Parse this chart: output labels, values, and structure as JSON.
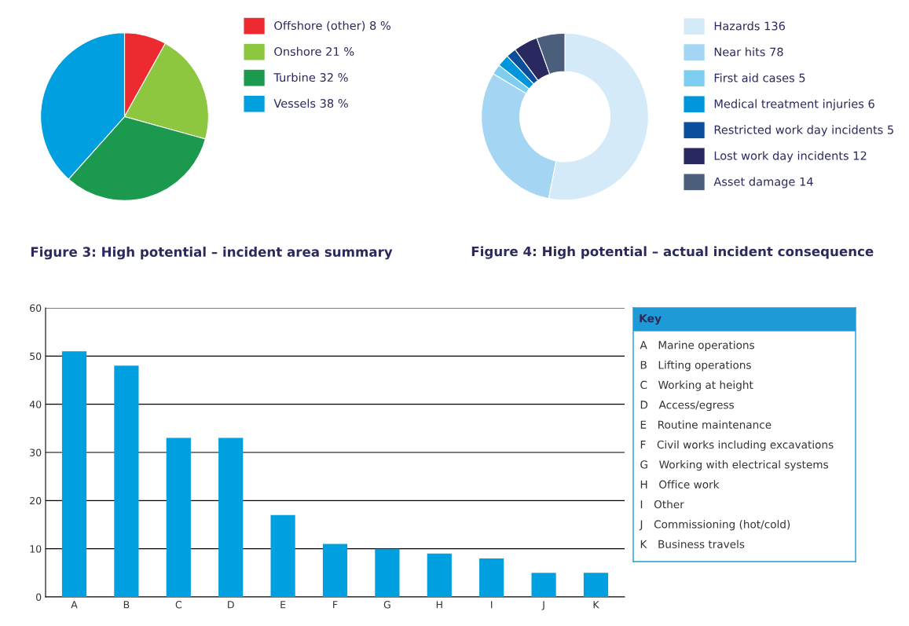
{
  "chart_data": [
    {
      "type": "pie",
      "title": "Figure 3: High potential – incident area summary",
      "legend": "right",
      "categories": [
        "Offshore (other)",
        "Onshore",
        "Turbine",
        "Vessels"
      ],
      "values": [
        8,
        21,
        32,
        38
      ],
      "value_labels": [
        "8 %",
        "21 %",
        "32 %",
        "38 %"
      ],
      "colors": [
        "#ed2a2f",
        "#8dc63f",
        "#1b9a4f",
        "#009fe0"
      ]
    },
    {
      "type": "donut",
      "title": "Figure 4: High potential – actual incident consequence",
      "legend": "right",
      "categories": [
        "Hazards",
        "Near hits",
        "First aid cases",
        "Medical treatment injuries",
        "Restricted work day incidents",
        "Lost work day incidents",
        "Asset damage"
      ],
      "values": [
        136,
        78,
        5,
        6,
        5,
        12,
        14
      ],
      "value_labels": [
        "136",
        "78",
        "5",
        "6",
        "5",
        "12",
        "14"
      ],
      "colors": [
        "#d5eaf8",
        "#a4d5f3",
        "#7ccdf0",
        "#0096db",
        "#0b4f9c",
        "#29295f",
        "#4b5e7b"
      ]
    },
    {
      "type": "bar",
      "categories": [
        "A",
        "B",
        "C",
        "D",
        "E",
        "F",
        "G",
        "H",
        "I",
        "J",
        "K"
      ],
      "values": [
        51,
        48,
        33,
        33,
        17,
        11,
        10,
        9,
        8,
        5,
        5
      ],
      "color": "#009fe0",
      "ylim": [
        0,
        60
      ],
      "yticks": [
        0,
        10,
        20,
        30,
        40,
        50,
        60
      ],
      "grid": "y"
    },
    {
      "type": "other",
      "title": "Key",
      "annotations": [
        "A Marine operations",
        "B Lifting operations",
        "C Working at height",
        "D Access/egress",
        "E Routine maintenance",
        "F Civil works including excavations",
        "G Working with electrical systems",
        "H Office work",
        "I Other",
        "J Commissioning (hot/cold)",
        "K Business travels"
      ]
    }
  ]
}
